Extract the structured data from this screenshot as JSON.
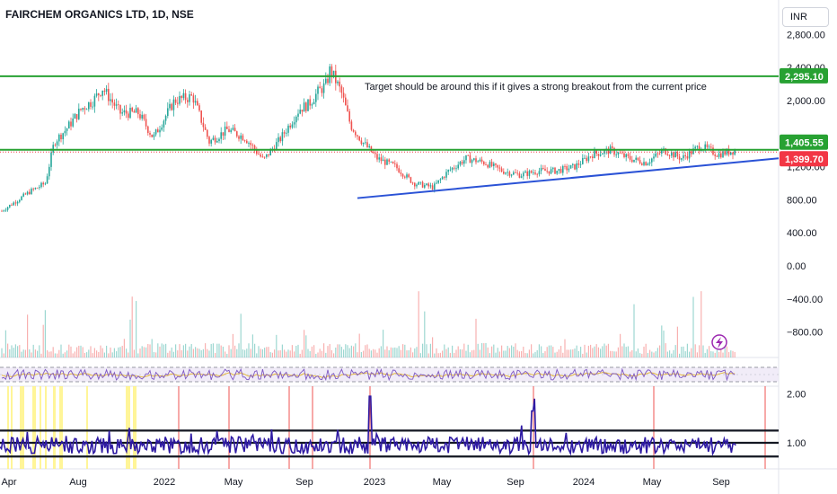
{
  "header": {
    "title": "FAIRCHEM ORGANICS LTD, 1D, NSE"
  },
  "currency_button": {
    "label": "INR"
  },
  "annotation": {
    "text": "Target should be around this if it gives a strong breakout from the current price"
  },
  "colors": {
    "up": "#26a69a",
    "down": "#ef5350",
    "resistance": "#27a132",
    "trendline": "#2a52d6",
    "current": "#f23645",
    "osc_line": "#2e1aa3",
    "rsi_band": "#ede7f6",
    "rsi_line": "#7e57c2",
    "rsi_ma": "#e5b83a"
  },
  "chart_data": {
    "type": "candlestick",
    "x_ticks": [
      "Apr",
      "Aug",
      "2022",
      "May",
      "Sep",
      "2023",
      "May",
      "Sep",
      "2024",
      "May",
      "Sep"
    ],
    "price_axis": {
      "ticks": [
        "2,800.00",
        "2,400.00",
        "2,000.00",
        "1,200.00",
        "800.00",
        "400.00",
        "0.00",
        "−400.00",
        "−800.00"
      ],
      "range": [
        -1000,
        2900
      ]
    },
    "price_points": [
      {
        "t": "2021-03-20",
        "v": 650
      },
      {
        "t": "2021-05-10",
        "v": 900
      },
      {
        "t": "2021-06-05",
        "v": 1000
      },
      {
        "t": "2021-06-20",
        "v": 1500
      },
      {
        "t": "2021-07-10",
        "v": 1650
      },
      {
        "t": "2021-08-05",
        "v": 1900
      },
      {
        "t": "2021-08-25",
        "v": 2000
      },
      {
        "t": "2021-09-10",
        "v": 2150
      },
      {
        "t": "2021-10-10",
        "v": 1850
      },
      {
        "t": "2021-11-10",
        "v": 1850
      },
      {
        "t": "2021-12-05",
        "v": 1550
      },
      {
        "t": "2022-01-10",
        "v": 2000
      },
      {
        "t": "2022-02-10",
        "v": 2050
      },
      {
        "t": "2022-03-10",
        "v": 1500
      },
      {
        "t": "2022-04-10",
        "v": 1650
      },
      {
        "t": "2022-05-10",
        "v": 1550
      },
      {
        "t": "2022-06-10",
        "v": 1280
      },
      {
        "t": "2022-07-10",
        "v": 1550
      },
      {
        "t": "2022-08-10",
        "v": 1900
      },
      {
        "t": "2022-08-25",
        "v": 1950
      },
      {
        "t": "2022-09-10",
        "v": 2100
      },
      {
        "t": "2022-09-25",
        "v": 2200
      },
      {
        "t": "2022-10-01",
        "v": 2380
      },
      {
        "t": "2022-10-20",
        "v": 2100
      },
      {
        "t": "2022-11-05",
        "v": 1700
      },
      {
        "t": "2022-11-25",
        "v": 1500
      },
      {
        "t": "2022-12-20",
        "v": 1300
      },
      {
        "t": "2023-01-20",
        "v": 1200
      },
      {
        "t": "2023-02-20",
        "v": 1000
      },
      {
        "t": "2023-03-25",
        "v": 950
      },
      {
        "t": "2023-04-20",
        "v": 1150
      },
      {
        "t": "2023-05-20",
        "v": 1300
      },
      {
        "t": "2023-06-20",
        "v": 1250
      },
      {
        "t": "2023-07-20",
        "v": 1150
      },
      {
        "t": "2023-08-20",
        "v": 1100
      },
      {
        "t": "2023-09-20",
        "v": 1150
      },
      {
        "t": "2023-10-20",
        "v": 1150
      },
      {
        "t": "2023-11-20",
        "v": 1200
      },
      {
        "t": "2023-12-20",
        "v": 1350
      },
      {
        "t": "2024-01-20",
        "v": 1400
      },
      {
        "t": "2024-02-20",
        "v": 1300
      },
      {
        "t": "2024-03-20",
        "v": 1250
      },
      {
        "t": "2024-04-20",
        "v": 1400
      },
      {
        "t": "2024-05-20",
        "v": 1300
      },
      {
        "t": "2024-06-20",
        "v": 1450
      },
      {
        "t": "2024-07-20",
        "v": 1350
      },
      {
        "t": "2024-08-20",
        "v": 1400
      }
    ],
    "resistance_top": 2295.1,
    "resistance_bottom": 1405.55,
    "trendline": [
      {
        "t": "2022-12-10",
        "v": 820
      },
      {
        "t": "2024-10-31",
        "v": 1410
      }
    ],
    "current_price": 1399.7,
    "price_tags": [
      {
        "label": "2,295.10",
        "value": 2295.1,
        "color": "#27a132"
      },
      {
        "label": "1,405.55",
        "value": 1405.55,
        "color": "#27a132"
      },
      {
        "label": "1,399.70",
        "value": 1399.7,
        "color": "#f23645"
      }
    ],
    "oscillator": {
      "ticks": [
        "2.00",
        "1.00"
      ],
      "range": [
        0.6,
        2.1
      ],
      "levels": [
        1.25,
        1.0,
        0.72
      ],
      "baseline": 0.9
    }
  }
}
